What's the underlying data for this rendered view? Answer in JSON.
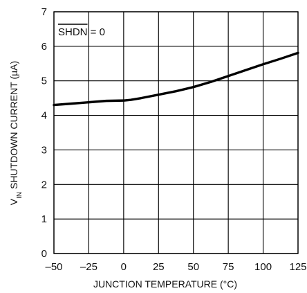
{
  "chart_data": {
    "type": "line",
    "title": "",
    "xlabel": "JUNCTION TEMPERATURE (°C)",
    "ylabel": {
      "prefix": "V",
      "subscript": "IN",
      "suffix": " SHUTDOWN CURRENT (µA)"
    },
    "annotation": {
      "text": "SHDN",
      "suffix": " = 0",
      "overline": true
    },
    "xlim": [
      -50,
      125
    ],
    "ylim": [
      0,
      7
    ],
    "x_ticks": [
      -50,
      -25,
      0,
      25,
      50,
      75,
      100,
      125
    ],
    "x_tick_labels": [
      "–50",
      "–25",
      "0",
      "25",
      "50",
      "75",
      "100",
      "125"
    ],
    "y_ticks": [
      0,
      1,
      2,
      3,
      4,
      5,
      6,
      7
    ],
    "y_tick_labels": [
      "0",
      "1",
      "2",
      "3",
      "4",
      "5",
      "6",
      "7"
    ],
    "grid": true,
    "series": [
      {
        "values": [
          {
            "x": -50,
            "y": 4.3
          },
          {
            "x": -37.5,
            "y": 4.34
          },
          {
            "x": -25,
            "y": 4.38
          },
          {
            "x": -12.5,
            "y": 4.42
          },
          {
            "x": 0,
            "y": 4.43
          },
          {
            "x": 5,
            "y": 4.45
          },
          {
            "x": 12.5,
            "y": 4.5
          },
          {
            "x": 25,
            "y": 4.6
          },
          {
            "x": 37.5,
            "y": 4.7
          },
          {
            "x": 50,
            "y": 4.82
          },
          {
            "x": 62.5,
            "y": 4.97
          },
          {
            "x": 75,
            "y": 5.14
          },
          {
            "x": 87.5,
            "y": 5.31
          },
          {
            "x": 100,
            "y": 5.48
          },
          {
            "x": 112.5,
            "y": 5.64
          },
          {
            "x": 125,
            "y": 5.81
          }
        ]
      }
    ],
    "colors": {
      "line": "#000000",
      "grid": "#000000",
      "text": "#111111"
    }
  }
}
